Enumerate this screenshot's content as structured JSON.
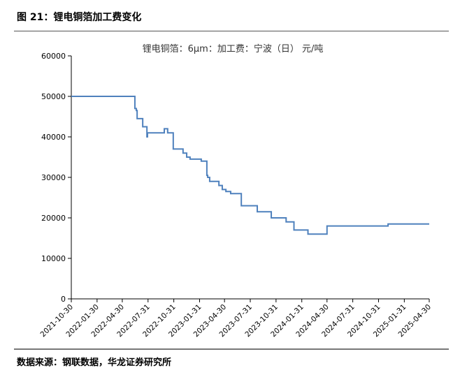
{
  "figure_title": "图 21：锂电铜箔加工费变化",
  "source": "数据来源：钢联数据，华龙证券研究所",
  "chart_data": {
    "type": "line",
    "step": true,
    "title": "锂电铜箔：6μm：加工费：宁波（日）  元/吨",
    "xlabel": "",
    "ylabel": "",
    "ylim": [
      0,
      60000
    ],
    "yticks": [
      0,
      10000,
      20000,
      30000,
      40000,
      50000,
      60000
    ],
    "xlim": [
      "2021-10-30",
      "2025-04-30"
    ],
    "xticks": [
      "2021-10-30",
      "2022-01-30",
      "2022-04-30",
      "2022-07-31",
      "2022-10-31",
      "2023-01-31",
      "2023-04-30",
      "2023-07-31",
      "2023-10-31",
      "2024-01-31",
      "2024-04-30",
      "2024-07-31",
      "2024-10-31",
      "2025-01-31",
      "2025-04-30"
    ],
    "grid": false,
    "color": "#4f81bd",
    "points": [
      [
        "2021-10-30",
        50000
      ],
      [
        "2022-06-14",
        47000
      ],
      [
        "2022-06-19",
        46500
      ],
      [
        "2022-06-22",
        44500
      ],
      [
        "2022-07-12",
        42500
      ],
      [
        "2022-07-27",
        40000
      ],
      [
        "2022-07-29",
        41000
      ],
      [
        "2022-09-27",
        42000
      ],
      [
        "2022-10-09",
        41000
      ],
      [
        "2022-10-29",
        37000
      ],
      [
        "2022-12-03",
        36000
      ],
      [
        "2022-12-16",
        35000
      ],
      [
        "2022-12-28",
        34500
      ],
      [
        "2023-02-06",
        34000
      ],
      [
        "2023-02-26",
        30500
      ],
      [
        "2023-03-01",
        30000
      ],
      [
        "2023-03-08",
        29000
      ],
      [
        "2023-04-10",
        28000
      ],
      [
        "2023-04-22",
        27000
      ],
      [
        "2023-05-05",
        26500
      ],
      [
        "2023-05-22",
        26000
      ],
      [
        "2023-06-29",
        23000
      ],
      [
        "2023-08-25",
        21500
      ],
      [
        "2023-10-14",
        20000
      ],
      [
        "2023-12-06",
        19000
      ],
      [
        "2024-01-03",
        17000
      ],
      [
        "2024-02-22",
        16000
      ],
      [
        "2024-04-30",
        18000
      ],
      [
        "2024-12-04",
        18500
      ],
      [
        "2025-04-30",
        18500
      ]
    ]
  }
}
